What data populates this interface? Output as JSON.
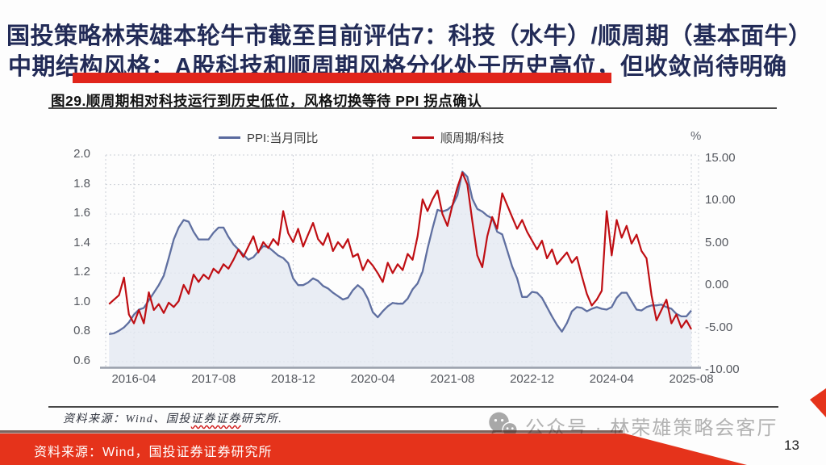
{
  "header": {
    "line1": "国投策略林荣雄本轮牛市截至目前评估7：科技（水牛）/顺周期（基本面牛）",
    "line2": "中期结构风格：A股科技和顺周期风格分化处于历史高位，但收敛尚待明确"
  },
  "figure": {
    "title": "图29.顺周期相对科技运行到历史低位，风格切换等待 PPI 拐点确认",
    "source_prefix": "资料来源：Wind、国投",
    "source_wavy": "证券证券",
    "source_suffix": "研究所."
  },
  "chart_data": {
    "type": "line",
    "title": "顺周期相对科技运行到历史低位，风格切换等待PPI拐点确认",
    "unit_right": "%",
    "grid": "dotted",
    "legend_position": "top",
    "legend": [
      {
        "name": "PPI:当月同比",
        "color": "#5a6a9e",
        "axis": "right"
      },
      {
        "name": "顺周期/科技",
        "color": "#bd1016",
        "axis": "left"
      }
    ],
    "left_axis": {
      "ticks": [
        "2.0",
        "1.8",
        "1.6",
        "1.4",
        "1.2",
        "1.0",
        "0.8",
        "0.6"
      ],
      "range": [
        0.6,
        2.0
      ]
    },
    "right_axis": {
      "ticks": [
        "15.00",
        "10.00",
        "5.00",
        "0.00",
        "-5.00",
        "-10.00"
      ],
      "range": [
        -10,
        15
      ]
    },
    "x_ticks": [
      "2016-04",
      "2017-08",
      "2018-12",
      "2020-04",
      "2021-08",
      "2022-12",
      "2024-04",
      "2025-08"
    ],
    "series": [
      {
        "name": "PPI:当月同比",
        "axis": "right",
        "color": "#5f6fa0",
        "area_fill": "#e4e8f1",
        "points": [
          [
            "2015-11",
            -5.7
          ],
          [
            "2015-12",
            -5.6
          ],
          [
            "2016-01",
            -5.3
          ],
          [
            "2016-02",
            -4.9
          ],
          [
            "2016-03",
            -4.3
          ],
          [
            "2016-04",
            -3.4
          ],
          [
            "2016-05",
            -2.8
          ],
          [
            "2016-06",
            -2.6
          ],
          [
            "2016-07",
            -1.7
          ],
          [
            "2016-08",
            -0.8
          ],
          [
            "2016-09",
            0.1
          ],
          [
            "2016-10",
            1.2
          ],
          [
            "2016-11",
            3.3
          ],
          [
            "2016-12",
            5.5
          ],
          [
            "2017-01",
            6.9
          ],
          [
            "2017-02",
            7.8
          ],
          [
            "2017-03",
            7.6
          ],
          [
            "2017-04",
            6.4
          ],
          [
            "2017-05",
            5.5
          ],
          [
            "2017-06",
            5.5
          ],
          [
            "2017-07",
            5.5
          ],
          [
            "2017-08",
            6.3
          ],
          [
            "2017-09",
            6.9
          ],
          [
            "2017-10",
            6.9
          ],
          [
            "2017-11",
            5.8
          ],
          [
            "2017-12",
            4.9
          ],
          [
            "2018-01",
            4.3
          ],
          [
            "2018-02",
            3.7
          ],
          [
            "2018-03",
            3.1
          ],
          [
            "2018-04",
            3.4
          ],
          [
            "2018-05",
            4.1
          ],
          [
            "2018-06",
            4.7
          ],
          [
            "2018-07",
            4.6
          ],
          [
            "2018-08",
            4.1
          ],
          [
            "2018-09",
            3.6
          ],
          [
            "2018-10",
            3.3
          ],
          [
            "2018-11",
            2.7
          ],
          [
            "2018-12",
            0.9
          ],
          [
            "2019-01",
            0.1
          ],
          [
            "2019-02",
            0.1
          ],
          [
            "2019-03",
            0.4
          ],
          [
            "2019-04",
            0.9
          ],
          [
            "2019-05",
            0.6
          ],
          [
            "2019-06",
            0.0
          ],
          [
            "2019-07",
            -0.3
          ],
          [
            "2019-08",
            -0.8
          ],
          [
            "2019-09",
            -1.2
          ],
          [
            "2019-10",
            -1.6
          ],
          [
            "2019-11",
            -1.4
          ],
          [
            "2019-12",
            -0.5
          ],
          [
            "2020-01",
            0.1
          ],
          [
            "2020-02",
            -0.4
          ],
          [
            "2020-03",
            -1.5
          ],
          [
            "2020-04",
            -3.1
          ],
          [
            "2020-05",
            -3.7
          ],
          [
            "2020-06",
            -3.0
          ],
          [
            "2020-07",
            -2.4
          ],
          [
            "2020-08",
            -2.0
          ],
          [
            "2020-09",
            -2.1
          ],
          [
            "2020-10",
            -2.1
          ],
          [
            "2020-11",
            -1.5
          ],
          [
            "2020-12",
            -0.4
          ],
          [
            "2021-01",
            0.3
          ],
          [
            "2021-02",
            1.7
          ],
          [
            "2021-03",
            4.4
          ],
          [
            "2021-04",
            6.8
          ],
          [
            "2021-05",
            9.0
          ],
          [
            "2021-06",
            8.8
          ],
          [
            "2021-07",
            9.0
          ],
          [
            "2021-08",
            9.5
          ],
          [
            "2021-09",
            10.7
          ],
          [
            "2021-10",
            13.5
          ],
          [
            "2021-11",
            12.9
          ],
          [
            "2021-12",
            10.3
          ],
          [
            "2022-01",
            9.1
          ],
          [
            "2022-02",
            8.8
          ],
          [
            "2022-03",
            8.3
          ],
          [
            "2022-04",
            8.0
          ],
          [
            "2022-05",
            6.4
          ],
          [
            "2022-06",
            6.1
          ],
          [
            "2022-07",
            4.2
          ],
          [
            "2022-08",
            2.3
          ],
          [
            "2022-09",
            0.9
          ],
          [
            "2022-10",
            -1.3
          ],
          [
            "2022-11",
            -1.3
          ],
          [
            "2022-12",
            -0.7
          ],
          [
            "2023-01",
            -0.8
          ],
          [
            "2023-02",
            -1.4
          ],
          [
            "2023-03",
            -2.5
          ],
          [
            "2023-04",
            -3.6
          ],
          [
            "2023-05",
            -4.6
          ],
          [
            "2023-06",
            -5.4
          ],
          [
            "2023-07",
            -4.4
          ],
          [
            "2023-08",
            -3.0
          ],
          [
            "2023-09",
            -2.5
          ],
          [
            "2023-10",
            -2.6
          ],
          [
            "2023-11",
            -3.0
          ],
          [
            "2023-12",
            -2.7
          ],
          [
            "2024-01",
            -2.5
          ],
          [
            "2024-02",
            -2.7
          ],
          [
            "2024-03",
            -2.8
          ],
          [
            "2024-04",
            -2.5
          ],
          [
            "2024-05",
            -1.4
          ],
          [
            "2024-06",
            -0.8
          ],
          [
            "2024-07",
            -0.8
          ],
          [
            "2024-08",
            -1.8
          ],
          [
            "2024-09",
            -2.8
          ],
          [
            "2024-10",
            -2.9
          ],
          [
            "2024-11",
            -2.5
          ],
          [
            "2024-12",
            -2.3
          ],
          [
            "2025-01",
            -2.3
          ],
          [
            "2025-02",
            -2.2
          ],
          [
            "2025-03",
            -2.5
          ],
          [
            "2025-04",
            -2.7
          ],
          [
            "2025-05",
            -3.3
          ],
          [
            "2025-06",
            -3.6
          ],
          [
            "2025-07",
            -3.6
          ],
          [
            "2025-08",
            -2.9
          ]
        ]
      },
      {
        "name": "顺周期/科技",
        "axis": "left",
        "color": "#bf0e13",
        "points": [
          [
            "2015-11",
            0.99
          ],
          [
            "2015-12",
            1.02
          ],
          [
            "2016-01",
            1.05
          ],
          [
            "2016-02",
            1.17
          ],
          [
            "2016-03",
            0.92
          ],
          [
            "2016-04",
            0.86
          ],
          [
            "2016-05",
            0.95
          ],
          [
            "2016-06",
            0.86
          ],
          [
            "2016-07",
            1.07
          ],
          [
            "2016-08",
            0.95
          ],
          [
            "2016-09",
            0.99
          ],
          [
            "2016-10",
            0.93
          ],
          [
            "2016-11",
            1.0
          ],
          [
            "2016-12",
            0.97
          ],
          [
            "2017-01",
            1.01
          ],
          [
            "2017-02",
            1.12
          ],
          [
            "2017-03",
            1.06
          ],
          [
            "2017-04",
            1.19
          ],
          [
            "2017-05",
            1.14
          ],
          [
            "2017-06",
            1.19
          ],
          [
            "2017-07",
            1.16
          ],
          [
            "2017-08",
            1.23
          ],
          [
            "2017-09",
            1.2
          ],
          [
            "2017-10",
            1.26
          ],
          [
            "2017-11",
            1.23
          ],
          [
            "2017-12",
            1.29
          ],
          [
            "2018-01",
            1.36
          ],
          [
            "2018-02",
            1.31
          ],
          [
            "2018-03",
            1.38
          ],
          [
            "2018-04",
            1.45
          ],
          [
            "2018-05",
            1.34
          ],
          [
            "2018-06",
            1.41
          ],
          [
            "2018-07",
            1.37
          ],
          [
            "2018-08",
            1.43
          ],
          [
            "2018-09",
            1.39
          ],
          [
            "2018-10",
            1.62
          ],
          [
            "2018-11",
            1.47
          ],
          [
            "2018-12",
            1.41
          ],
          [
            "2019-01",
            1.5
          ],
          [
            "2019-02",
            1.38
          ],
          [
            "2019-03",
            1.46
          ],
          [
            "2019-04",
            1.54
          ],
          [
            "2019-05",
            1.43
          ],
          [
            "2019-06",
            1.39
          ],
          [
            "2019-07",
            1.47
          ],
          [
            "2019-08",
            1.35
          ],
          [
            "2019-09",
            1.41
          ],
          [
            "2019-10",
            1.37
          ],
          [
            "2019-11",
            1.43
          ],
          [
            "2019-12",
            1.31
          ],
          [
            "2020-01",
            1.33
          ],
          [
            "2020-02",
            1.22
          ],
          [
            "2020-03",
            1.29
          ],
          [
            "2020-04",
            1.25
          ],
          [
            "2020-05",
            1.2
          ],
          [
            "2020-06",
            1.14
          ],
          [
            "2020-07",
            1.27
          ],
          [
            "2020-08",
            1.2
          ],
          [
            "2020-09",
            1.26
          ],
          [
            "2020-10",
            1.22
          ],
          [
            "2020-11",
            1.33
          ],
          [
            "2020-12",
            1.29
          ],
          [
            "2021-01",
            1.45
          ],
          [
            "2021-02",
            1.7
          ],
          [
            "2021-03",
            1.62
          ],
          [
            "2021-04",
            1.7
          ],
          [
            "2021-05",
            1.76
          ],
          [
            "2021-06",
            1.6
          ],
          [
            "2021-07",
            1.52
          ],
          [
            "2021-08",
            1.66
          ],
          [
            "2021-09",
            1.78
          ],
          [
            "2021-10",
            1.88
          ],
          [
            "2021-11",
            1.8
          ],
          [
            "2021-12",
            1.55
          ],
          [
            "2022-01",
            1.32
          ],
          [
            "2022-02",
            1.24
          ],
          [
            "2022-03",
            1.45
          ],
          [
            "2022-04",
            1.58
          ],
          [
            "2022-05",
            1.5
          ],
          [
            "2022-06",
            1.74
          ],
          [
            "2022-07",
            1.66
          ],
          [
            "2022-08",
            1.58
          ],
          [
            "2022-09",
            1.5
          ],
          [
            "2022-10",
            1.56
          ],
          [
            "2022-11",
            1.48
          ],
          [
            "2022-12",
            1.42
          ],
          [
            "2023-01",
            1.36
          ],
          [
            "2023-02",
            1.42
          ],
          [
            "2023-03",
            1.3
          ],
          [
            "2023-04",
            1.36
          ],
          [
            "2023-05",
            1.26
          ],
          [
            "2023-06",
            1.3
          ],
          [
            "2023-07",
            1.34
          ],
          [
            "2023-08",
            1.27
          ],
          [
            "2023-09",
            1.31
          ],
          [
            "2023-10",
            1.18
          ],
          [
            "2023-11",
            1.06
          ],
          [
            "2023-12",
            0.98
          ],
          [
            "2024-01",
            1.02
          ],
          [
            "2024-02",
            1.08
          ],
          [
            "2024-03",
            1.62
          ],
          [
            "2024-04",
            1.32
          ],
          [
            "2024-05",
            1.56
          ],
          [
            "2024-06",
            1.44
          ],
          [
            "2024-07",
            1.52
          ],
          [
            "2024-08",
            1.4
          ],
          [
            "2024-09",
            1.46
          ],
          [
            "2024-10",
            1.35
          ],
          [
            "2024-11",
            1.3
          ],
          [
            "2024-12",
            1.05
          ],
          [
            "2025-01",
            0.88
          ],
          [
            "2025-02",
            0.95
          ],
          [
            "2025-03",
            1.02
          ],
          [
            "2025-04",
            0.86
          ],
          [
            "2025-05",
            0.92
          ],
          [
            "2025-06",
            0.83
          ],
          [
            "2025-07",
            0.88
          ],
          [
            "2025-08",
            0.82
          ]
        ]
      }
    ]
  },
  "watermark": {
    "text": "公众号 · 林荣雄策略会客厅"
  },
  "footer": {
    "source": "资料来源：Wind，国投证券证券研究所",
    "page": "13"
  },
  "colors": {
    "accent_red": "#e1251b",
    "band_red": "#e5331b",
    "title_navy": "#222b57",
    "blue_line": "#5f6fa0",
    "red_line": "#bf0e13"
  }
}
